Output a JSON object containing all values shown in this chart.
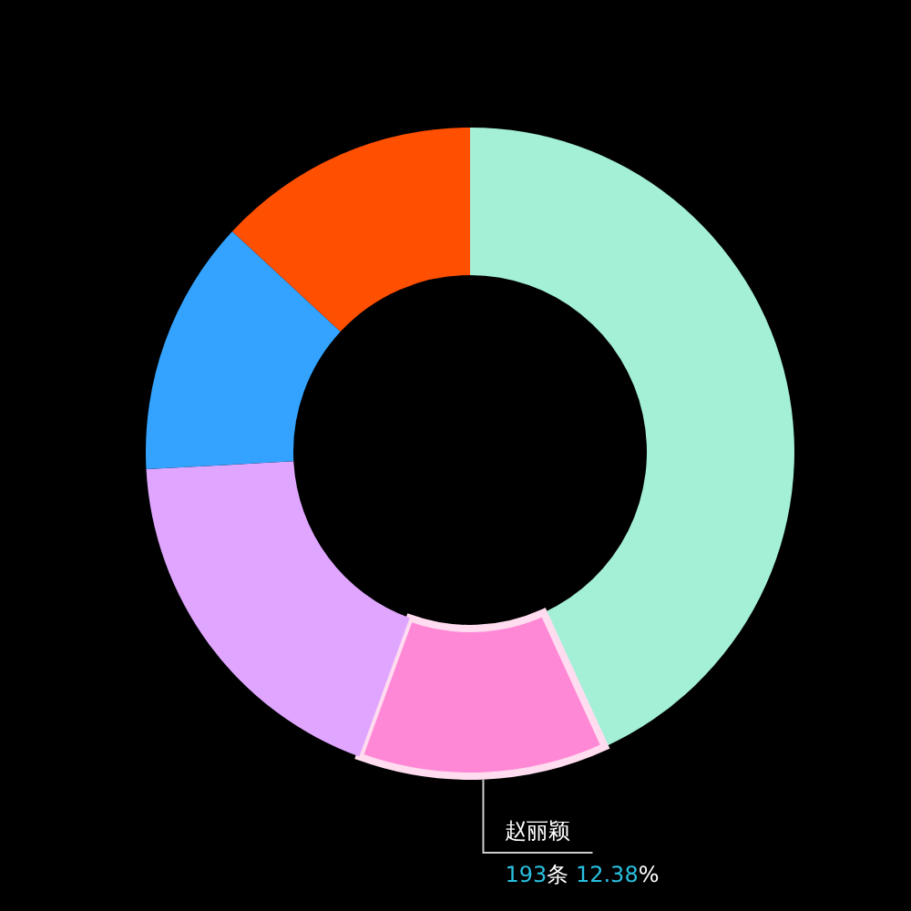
{
  "chart_data": {
    "type": "donut",
    "categories": [
      null,
      "赵丽颖",
      null,
      null,
      null
    ],
    "values": [
      43.17,
      12.38,
      18.6,
      12.75,
      13.1
    ],
    "colors": [
      "#a3f0d6",
      "#ff88d6",
      "#e0a6ff",
      "#33a3ff",
      "#ff4f00"
    ],
    "value_labels": [
      null,
      "193条 12.38%",
      null,
      null,
      null
    ]
  }
}
